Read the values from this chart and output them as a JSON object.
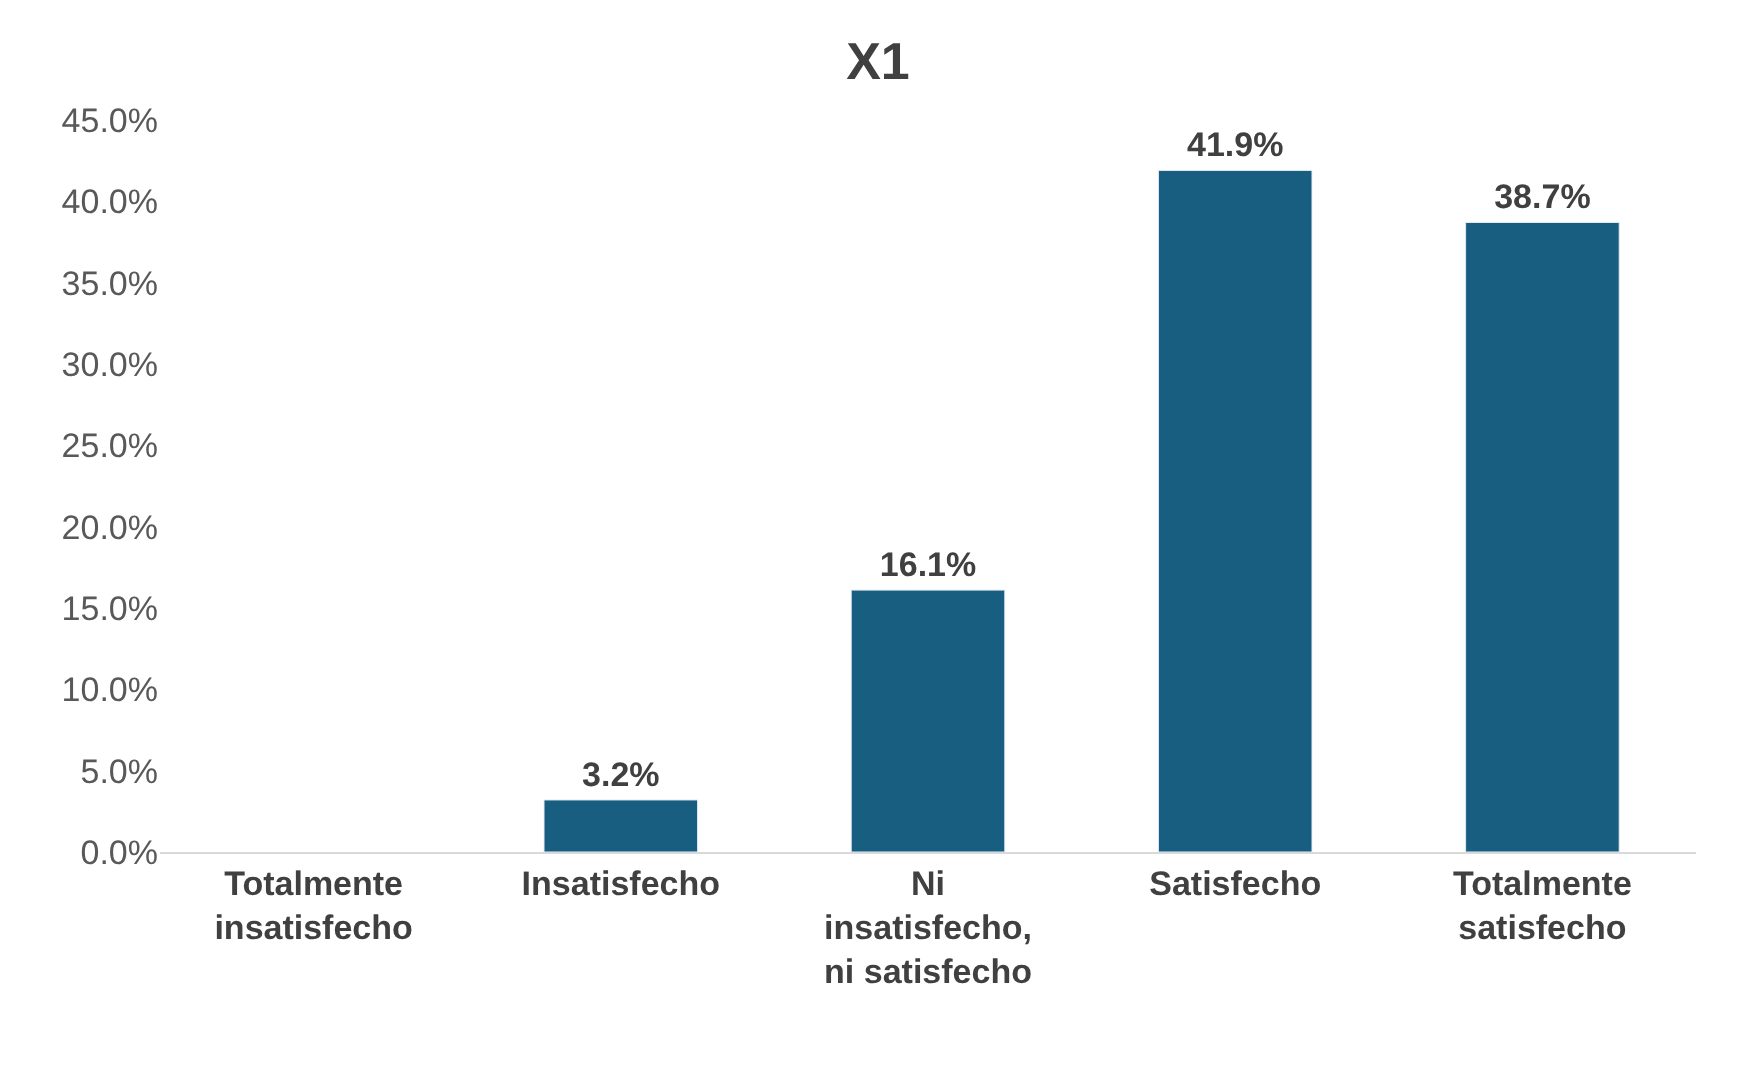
{
  "chart_data": {
    "type": "bar",
    "title": "X1",
    "categories": [
      "Totalmente\ninsatisfecho",
      "Insatisfecho",
      "Ni\ninsatisfecho,\nni satisfecho",
      "Satisfecho",
      "Totalmente\nsatisfecho"
    ],
    "values": [
      null,
      3.2,
      16.1,
      41.9,
      38.7
    ],
    "value_labels": [
      null,
      "3.2%",
      "16.1%",
      "41.9%",
      "38.7%"
    ],
    "color": "#175e80",
    "ylim": [
      0,
      45
    ],
    "yticks": [
      {
        "value": 0,
        "label": "0.0%"
      },
      {
        "value": 5,
        "label": "5.0%"
      },
      {
        "value": 10,
        "label": "10.0%"
      },
      {
        "value": 15,
        "label": "15.0%"
      },
      {
        "value": 20,
        "label": "20.0%"
      },
      {
        "value": 25,
        "label": "25.0%"
      },
      {
        "value": 30,
        "label": "30.0%"
      },
      {
        "value": 35,
        "label": "35.0%"
      },
      {
        "value": 40,
        "label": "40.0%"
      },
      {
        "value": 45,
        "label": "45.0%"
      }
    ],
    "grid": false,
    "legend": false
  }
}
